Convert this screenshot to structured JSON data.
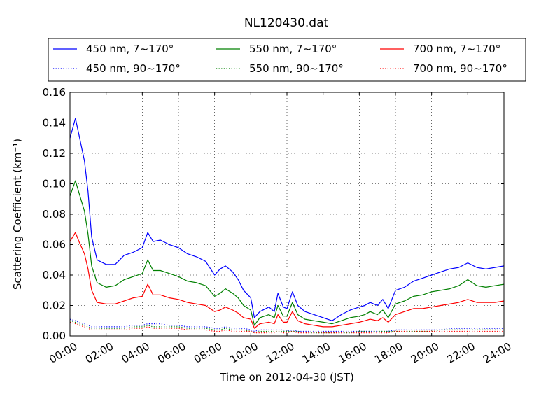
{
  "chart_data": {
    "type": "line",
    "title": "NL120430.dat",
    "xlabel": "Time on 2012-04-30 (JST)",
    "ylabel": "Scattering Coefficient (km⁻¹)",
    "xlim": [
      0,
      24
    ],
    "ylim": [
      0,
      0.16
    ],
    "x_tick_labels": [
      "00:00",
      "02:00",
      "04:00",
      "06:00",
      "08:00",
      "10:00",
      "12:00",
      "14:00",
      "16:00",
      "18:00",
      "20:00",
      "22:00",
      "24:00"
    ],
    "y_tick_labels": [
      "0.00",
      "0.02",
      "0.04",
      "0.06",
      "0.08",
      "0.10",
      "0.12",
      "0.14",
      "0.16"
    ],
    "grid": true,
    "legend_position": "top",
    "x_hours": [
      0,
      0.3,
      0.5,
      0.8,
      1.0,
      1.2,
      1.5,
      2.0,
      2.5,
      3.0,
      3.5,
      4.0,
      4.3,
      4.6,
      5.0,
      5.5,
      6.0,
      6.5,
      7.0,
      7.5,
      8.0,
      8.3,
      8.6,
      9.0,
      9.3,
      9.6,
      10.0,
      10.2,
      10.5,
      11.0,
      11.3,
      11.5,
      11.8,
      12.0,
      12.3,
      12.6,
      13.0,
      13.5,
      14.0,
      14.5,
      15.0,
      15.5,
      16.0,
      16.3,
      16.6,
      17.0,
      17.3,
      17.6,
      18.0,
      18.5,
      19.0,
      19.5,
      20.0,
      20.5,
      21.0,
      21.5,
      22.0,
      22.5,
      23.0,
      23.5,
      24.0
    ],
    "series": [
      {
        "name": "450 nm, 7∼170°",
        "color": "#0000ff",
        "style": "solid",
        "values": [
          0.13,
          0.143,
          0.132,
          0.115,
          0.095,
          0.065,
          0.05,
          0.047,
          0.047,
          0.053,
          0.055,
          0.058,
          0.068,
          0.062,
          0.063,
          0.06,
          0.058,
          0.054,
          0.052,
          0.049,
          0.04,
          0.044,
          0.046,
          0.042,
          0.037,
          0.03,
          0.025,
          0.012,
          0.016,
          0.019,
          0.016,
          0.028,
          0.019,
          0.018,
          0.029,
          0.02,
          0.016,
          0.014,
          0.012,
          0.01,
          0.014,
          0.017,
          0.019,
          0.02,
          0.022,
          0.02,
          0.024,
          0.018,
          0.03,
          0.032,
          0.036,
          0.038,
          0.04,
          0.042,
          0.044,
          0.045,
          0.048,
          0.045,
          0.044,
          0.045,
          0.046
        ]
      },
      {
        "name": "550 nm, 7∼170°",
        "color": "#008000",
        "style": "solid",
        "values": [
          0.092,
          0.102,
          0.094,
          0.082,
          0.067,
          0.046,
          0.035,
          0.032,
          0.033,
          0.037,
          0.039,
          0.041,
          0.05,
          0.043,
          0.043,
          0.041,
          0.039,
          0.036,
          0.035,
          0.033,
          0.026,
          0.028,
          0.031,
          0.028,
          0.025,
          0.02,
          0.017,
          0.007,
          0.012,
          0.014,
          0.012,
          0.02,
          0.013,
          0.013,
          0.022,
          0.014,
          0.011,
          0.01,
          0.009,
          0.008,
          0.01,
          0.012,
          0.013,
          0.014,
          0.016,
          0.014,
          0.017,
          0.012,
          0.021,
          0.023,
          0.026,
          0.027,
          0.029,
          0.03,
          0.031,
          0.033,
          0.037,
          0.033,
          0.032,
          0.033,
          0.034
        ]
      },
      {
        "name": "700 nm, 7∼170°",
        "color": "#ff0000",
        "style": "solid",
        "values": [
          0.062,
          0.068,
          0.062,
          0.054,
          0.044,
          0.03,
          0.022,
          0.021,
          0.021,
          0.023,
          0.025,
          0.026,
          0.034,
          0.027,
          0.027,
          0.025,
          0.024,
          0.022,
          0.021,
          0.02,
          0.016,
          0.017,
          0.019,
          0.017,
          0.015,
          0.012,
          0.011,
          0.005,
          0.008,
          0.009,
          0.008,
          0.014,
          0.009,
          0.009,
          0.016,
          0.01,
          0.008,
          0.007,
          0.006,
          0.006,
          0.007,
          0.008,
          0.009,
          0.01,
          0.011,
          0.01,
          0.012,
          0.009,
          0.014,
          0.016,
          0.018,
          0.018,
          0.019,
          0.02,
          0.021,
          0.022,
          0.024,
          0.022,
          0.022,
          0.022,
          0.023
        ]
      },
      {
        "name": "450 nm, 90∼170°",
        "color": "#0000ff",
        "style": "dotted",
        "values": [
          0.011,
          0.01,
          0.009,
          0.008,
          0.007,
          0.006,
          0.006,
          0.006,
          0.006,
          0.006,
          0.007,
          0.007,
          0.008,
          0.008,
          0.008,
          0.007,
          0.007,
          0.006,
          0.006,
          0.006,
          0.005,
          0.005,
          0.006,
          0.005,
          0.005,
          0.005,
          0.004,
          0.003,
          0.004,
          0.004,
          0.004,
          0.004,
          0.004,
          0.003,
          0.004,
          0.003,
          0.003,
          0.003,
          0.003,
          0.003,
          0.003,
          0.003,
          0.003,
          0.003,
          0.003,
          0.003,
          0.003,
          0.003,
          0.004,
          0.004,
          0.004,
          0.004,
          0.004,
          0.004,
          0.005,
          0.005,
          0.005,
          0.005,
          0.005,
          0.005,
          0.005
        ]
      },
      {
        "name": "550 nm, 90∼170°",
        "color": "#008000",
        "style": "dotted",
        "values": [
          0.01,
          0.009,
          0.008,
          0.007,
          0.006,
          0.005,
          0.005,
          0.005,
          0.005,
          0.005,
          0.006,
          0.006,
          0.007,
          0.006,
          0.006,
          0.006,
          0.006,
          0.005,
          0.005,
          0.005,
          0.004,
          0.004,
          0.005,
          0.004,
          0.004,
          0.004,
          0.003,
          0.002,
          0.003,
          0.003,
          0.003,
          0.003,
          0.003,
          0.003,
          0.003,
          0.003,
          0.002,
          0.002,
          0.002,
          0.002,
          0.002,
          0.002,
          0.003,
          0.003,
          0.003,
          0.003,
          0.003,
          0.003,
          0.003,
          0.003,
          0.003,
          0.003,
          0.003,
          0.004,
          0.004,
          0.004,
          0.004,
          0.004,
          0.004,
          0.004,
          0.004
        ]
      },
      {
        "name": "700 nm, 90∼170°",
        "color": "#ff0000",
        "style": "dotted",
        "values": [
          0.009,
          0.008,
          0.007,
          0.006,
          0.005,
          0.004,
          0.004,
          0.004,
          0.004,
          0.004,
          0.005,
          0.005,
          0.006,
          0.005,
          0.005,
          0.005,
          0.005,
          0.004,
          0.004,
          0.004,
          0.003,
          0.003,
          0.004,
          0.003,
          0.003,
          0.003,
          0.003,
          0.002,
          0.002,
          0.002,
          0.002,
          0.003,
          0.002,
          0.002,
          0.003,
          0.002,
          0.002,
          0.002,
          0.002,
          0.002,
          0.002,
          0.002,
          0.002,
          0.002,
          0.002,
          0.002,
          0.002,
          0.002,
          0.003,
          0.003,
          0.003,
          0.003,
          0.003,
          0.003,
          0.003,
          0.003,
          0.003,
          0.003,
          0.003,
          0.003,
          0.003
        ]
      }
    ]
  }
}
